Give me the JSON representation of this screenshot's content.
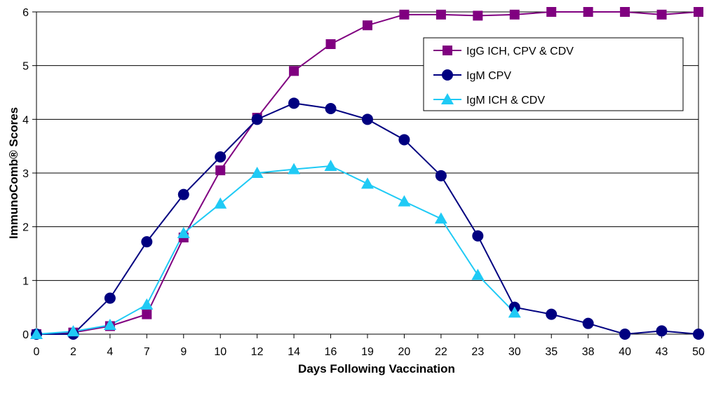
{
  "chart_data": {
    "type": "line",
    "title": "",
    "xlabel": "Days Following Vaccination",
    "ylabel": "ImmunoComb® Scores",
    "categories": [
      "0",
      "2",
      "4",
      "7",
      "9",
      "10",
      "12",
      "14",
      "16",
      "19",
      "20",
      "22",
      "23",
      "30",
      "35",
      "38",
      "40",
      "43",
      "50"
    ],
    "yticks": [
      "0",
      "1",
      "2",
      "3",
      "4",
      "5",
      "6"
    ],
    "ylim": [
      0,
      6
    ],
    "grid": true,
    "legend_position": "top-right",
    "series": [
      {
        "name": "IgG ICH, CPV & CDV",
        "color": "#800080",
        "marker": "square",
        "values": [
          0,
          0.03,
          0.15,
          0.37,
          1.8,
          3.05,
          4.03,
          4.9,
          5.4,
          5.75,
          5.95,
          5.95,
          5.93,
          5.95,
          6.0,
          6.0,
          6.0,
          5.95,
          6.0
        ]
      },
      {
        "name": "IgM CPV",
        "color": "#000080",
        "marker": "circle",
        "values": [
          0,
          0,
          0.67,
          1.72,
          2.6,
          3.3,
          4.0,
          4.3,
          4.2,
          4.0,
          3.62,
          2.95,
          1.83,
          0.5,
          0.37,
          0.2,
          0,
          0.06,
          0
        ]
      },
      {
        "name": "IgM ICH & CDV",
        "color": "#1fcaf5",
        "marker": "triangle",
        "values": [
          0,
          0.05,
          0.17,
          0.55,
          1.88,
          2.43,
          3.0,
          3.07,
          3.13,
          2.8,
          2.47,
          2.15,
          1.1,
          0.4,
          null,
          null,
          null,
          null,
          null
        ]
      }
    ]
  }
}
